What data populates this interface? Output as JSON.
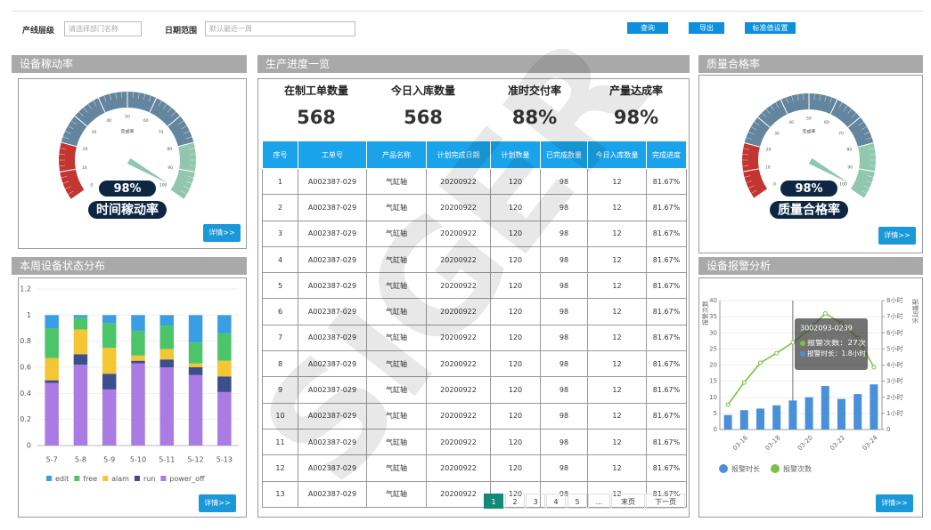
{
  "filters": {
    "line_label": "产线层级",
    "line_placeholder": "请选择部门名称",
    "date_label": "日期范围",
    "date_placeholder": "默认最近一周"
  },
  "buttons": [
    "查询",
    "导出",
    "标准值设置"
  ],
  "watermark": "SIGER",
  "panels": {
    "utilization": "设备稼动率",
    "status": "本周设备状态分布",
    "progress": "生产进度一览",
    "quality": "质量合格率",
    "alarm": "设备报警分析"
  },
  "detail_button": "详情>>",
  "progress": {
    "kpis": [
      {
        "label": "在制工单数量",
        "value": "568"
      },
      {
        "label": "今日入库数量",
        "value": "568"
      },
      {
        "label": "准时交付率",
        "value": "88%"
      },
      {
        "label": "产量达成率",
        "value": "98%"
      }
    ],
    "table": {
      "columns": [
        "序号",
        "工单号",
        "产品名称",
        "计划完成日期",
        "计划数量",
        "已完成数量",
        "今日入库数量",
        "完成进度"
      ],
      "rows": [
        [
          1,
          "A002387-029",
          "气缸轴",
          "20200922",
          120,
          98,
          12,
          "81.67%"
        ],
        [
          2,
          "A002387-029",
          "气缸轴",
          "20200922",
          120,
          98,
          12,
          "81.67%"
        ],
        [
          3,
          "A002387-029",
          "气缸轴",
          "20200922",
          120,
          98,
          12,
          "81.67%"
        ],
        [
          4,
          "A002387-029",
          "气缸轴",
          "20200922",
          120,
          98,
          12,
          "81.67%"
        ],
        [
          5,
          "A002387-029",
          "气缸轴",
          "20200922",
          120,
          98,
          12,
          "81.67%"
        ],
        [
          6,
          "A002387-029",
          "气缸轴",
          "20200922",
          120,
          98,
          12,
          "81.67%"
        ],
        [
          7,
          "A002387-029",
          "气缸轴",
          "20200922",
          120,
          98,
          12,
          "81.67%"
        ],
        [
          8,
          "A002387-029",
          "气缸轴",
          "20200922",
          120,
          98,
          12,
          "81.67%"
        ],
        [
          9,
          "A002387-029",
          "气缸轴",
          "20200922",
          120,
          98,
          12,
          "81.67%"
        ],
        [
          10,
          "A002387-029",
          "气缸轴",
          "20200922",
          120,
          98,
          12,
          "81.67%"
        ],
        [
          11,
          "A002387-029",
          "气缸轴",
          "20200922",
          120,
          98,
          12,
          "81.67%"
        ],
        [
          12,
          "A002387-029",
          "气缸轴",
          "20200922",
          120,
          98,
          12,
          "81.67%"
        ],
        [
          13,
          "A002387-029",
          "气缸轴",
          "20200922",
          120,
          98,
          12,
          "81.67%"
        ]
      ]
    },
    "pagination": [
      "1",
      "2",
      "3",
      "4",
      "5",
      "...",
      "末页",
      "下一页"
    ]
  },
  "chart_data": [
    {
      "type": "gauge",
      "label": "完成率",
      "value": 98,
      "value_label": "98%",
      "caption": "时间稼动率",
      "ylim": [
        0,
        100
      ],
      "yticks": [
        0,
        10,
        20,
        30,
        40,
        50,
        60,
        70,
        80,
        90,
        100
      ],
      "bands": [
        [
          0.2,
          "#c23531"
        ],
        [
          0.8,
          "#63869e"
        ],
        [
          1,
          "#91c7ae"
        ]
      ],
      "color": "#91c7ae"
    },
    {
      "type": "bar",
      "stacked": true,
      "grid": true,
      "legend": "bottom",
      "categories": [
        "5-7",
        "5-8",
        "5-9",
        "5-10",
        "5-11",
        "5-12",
        "5-13"
      ],
      "ylim": [
        0,
        1.2
      ],
      "yticks": [
        0,
        0.2,
        0.4,
        0.6,
        0.8,
        1,
        1.2
      ],
      "series": [
        {
          "name": "power_off",
          "color": "#a97be3",
          "values": [
            0.48,
            0.62,
            0.43,
            0.63,
            0.6,
            0.54,
            0.41
          ]
        },
        {
          "name": "run",
          "color": "#3b4f8c",
          "values": [
            0.02,
            0.08,
            0.12,
            0.02,
            0.06,
            0.06,
            0.12
          ]
        },
        {
          "name": "alam",
          "color": "#f5c633",
          "values": [
            0.17,
            0.19,
            0.2,
            0.04,
            0.08,
            0.03,
            0.12
          ]
        },
        {
          "name": "free",
          "color": "#4cc46a",
          "values": [
            0.23,
            0.09,
            0.19,
            0.19,
            0.18,
            0.16,
            0.21
          ]
        },
        {
          "name": "edit",
          "color": "#3a9ee4",
          "values": [
            0.1,
            0.02,
            0.06,
            0.12,
            0.08,
            0.21,
            0.14
          ]
        }
      ],
      "legend_order": [
        "edit",
        "free",
        "alam",
        "run",
        "power_off"
      ]
    },
    {
      "type": "gauge",
      "label": "完成率",
      "value": 98,
      "value_label": "98%",
      "caption": "质量合格率",
      "ylim": [
        0,
        100
      ],
      "yticks": [
        0,
        10,
        20,
        30,
        40,
        50,
        60,
        70,
        80,
        90,
        100
      ],
      "bands": [
        [
          0.2,
          "#c23531"
        ],
        [
          0.8,
          "#63869e"
        ],
        [
          1,
          "#91c7ae"
        ]
      ],
      "color": "#91c7ae"
    },
    {
      "type": "combo",
      "grid": true,
      "legend": "bottom",
      "ylabel": "报警次数",
      "y2label": "报警时长",
      "categories": [
        null,
        "03-16",
        null,
        "03-18",
        null,
        "03-20",
        null,
        "03-22",
        null,
        "03-24"
      ],
      "ylim": [
        0,
        40
      ],
      "yticks": [
        0,
        5,
        10,
        15,
        20,
        25,
        30,
        35,
        40
      ],
      "y2lim": [
        0,
        8
      ],
      "y2ticks": [
        0,
        {
          "value": 1,
          "label": "1小时"
        },
        {
          "value": 2,
          "label": "2小时"
        },
        {
          "value": 3,
          "label": "3小时"
        },
        {
          "value": 4,
          "label": "4小时"
        },
        {
          "value": 5,
          "label": "5小时"
        },
        {
          "value": 6,
          "label": "6小时"
        },
        {
          "value": 7,
          "label": "7小时"
        },
        {
          "value": 8,
          "label": "8小时"
        }
      ],
      "series": [
        {
          "name": "报警时长",
          "kind": "bar",
          "axis": "y2",
          "color": "#4a90d9",
          "values": [
            0.9,
            1.2,
            1.3,
            1.5,
            1.8,
            2.0,
            2.7,
            1.9,
            2.2,
            2.8
          ]
        },
        {
          "name": "报警次数",
          "kind": "line",
          "color": "#7ac143",
          "values": [
            7.7,
            14.6,
            20.7,
            23.7,
            27,
            31,
            36,
            33,
            28.4,
            19.3
          ]
        }
      ],
      "tooltip": {
        "title": "3002093-0239",
        "lines": [
          "报警次数：27次",
          "报警时长：1.8小时"
        ]
      }
    }
  ]
}
